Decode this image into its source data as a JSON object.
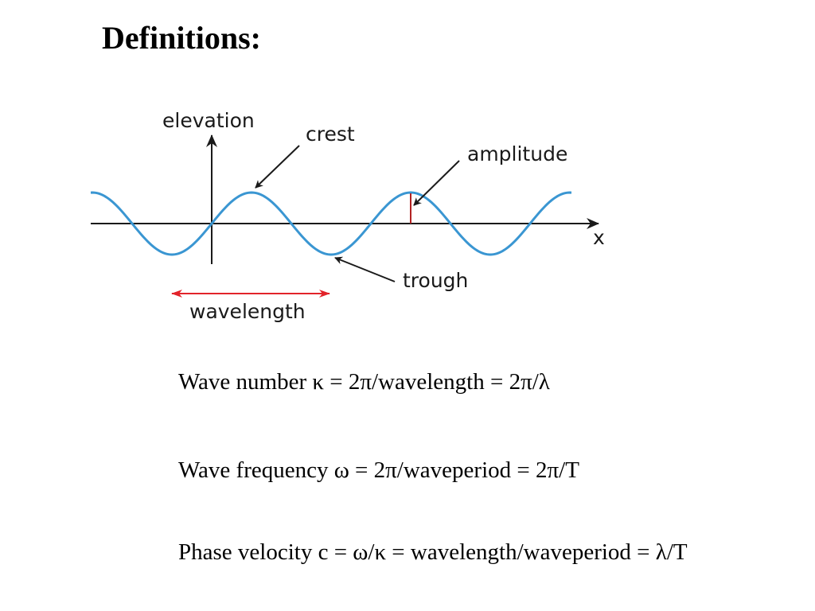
{
  "title": "Definitions:",
  "diagram": {
    "labels": {
      "elevation": "elevation",
      "crest": "crest",
      "amplitude": "amplitude",
      "x_axis": "x",
      "trough": "trough",
      "wavelength": "wavelength"
    },
    "colors": {
      "wave": "#3a96d2",
      "axes": "#1a1a1a",
      "wavelength_arrow": "#e2232a",
      "amplitude_marker": "#b22222"
    }
  },
  "equations": {
    "wave_number": "Wave number κ = 2π/wavelength = 2π/λ",
    "wave_frequency": "Wave frequency ω = 2π/waveperiod = 2π/T",
    "phase_velocity": "Phase velocity c = ω/κ = wavelength/waveperiod = λ/T"
  }
}
